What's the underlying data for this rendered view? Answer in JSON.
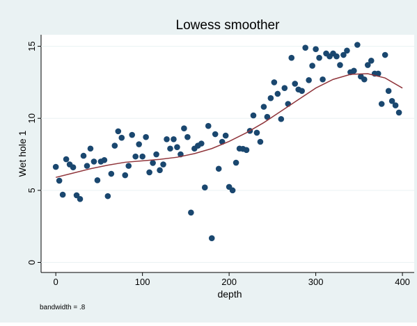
{
  "chart_data": {
    "type": "scatter",
    "title": "Lowess smoother",
    "x_label": "depth",
    "y_label": "Wet hole 1",
    "note": "bandwidth = .8",
    "color": "#1a476f",
    "x": [
      0,
      4,
      8,
      12,
      16,
      20,
      24,
      28,
      32,
      36,
      40,
      44,
      48,
      52,
      56,
      60,
      64,
      68,
      72,
      76,
      80,
      84,
      88,
      92,
      96,
      100,
      104,
      108,
      112,
      116,
      120,
      124,
      128,
      132,
      136,
      140,
      144,
      148,
      152,
      156,
      160,
      164,
      168,
      172,
      176,
      180,
      184,
      188,
      192,
      196,
      200,
      204,
      208,
      212,
      216,
      220,
      224,
      228,
      232,
      236,
      240,
      244,
      248,
      252,
      256,
      260,
      264,
      268,
      272,
      276,
      280,
      284,
      288,
      292,
      296,
      300,
      304,
      308,
      312,
      316,
      320,
      324,
      328,
      332,
      336,
      340,
      344,
      348,
      352,
      356,
      360,
      364,
      368,
      372,
      376,
      380,
      384,
      388,
      392,
      396
    ],
    "values": [
      6.63,
      5.67,
      4.7,
      7.16,
      6.8,
      6.6,
      4.66,
      4.4,
      7.4,
      6.7,
      7.9,
      7.0,
      5.7,
      7.0,
      7.1,
      4.6,
      6.15,
      8.1,
      9.1,
      8.65,
      6.05,
      6.7,
      8.85,
      7.35,
      8.2,
      7.35,
      8.7,
      6.25,
      6.9,
      7.5,
      6.4,
      6.8,
      8.55,
      7.9,
      8.55,
      8.0,
      7.5,
      9.3,
      8.7,
      3.46,
      7.9,
      8.1,
      8.25,
      5.2,
      9.47,
      1.68,
      8.9,
      6.5,
      8.37,
      8.8,
      5.24,
      5.0,
      6.92,
      7.9,
      7.88,
      7.8,
      9.13,
      10.2,
      9.0,
      8.37,
      10.8,
      10.1,
      11.4,
      12.5,
      11.7,
      9.95,
      12.1,
      11.0,
      14.2,
      12.4,
      12.0,
      11.9,
      14.9,
      12.65,
      13.65,
      14.8,
      14.2,
      12.7,
      14.5,
      14.3,
      14.5,
      14.3,
      13.7,
      14.4,
      14.7,
      13.2,
      13.3,
      15.1,
      12.9,
      12.7,
      13.7,
      14.0,
      13.1,
      13.1,
      11.0,
      14.4,
      11.9,
      11.2,
      10.9,
      10.4
    ],
    "smoother": {
      "type": "line",
      "color": "#90353b",
      "x": [
        0,
        20,
        40,
        60,
        80,
        100,
        120,
        140,
        160,
        180,
        200,
        220,
        240,
        260,
        280,
        300,
        320,
        340,
        360,
        380,
        400
      ],
      "values": [
        5.9,
        6.2,
        6.5,
        6.75,
        6.95,
        7.05,
        7.15,
        7.3,
        7.55,
        7.9,
        8.4,
        9.0,
        9.7,
        10.5,
        11.3,
        12.1,
        12.7,
        13.05,
        13.1,
        12.8,
        12.1
      ]
    },
    "xlim": [
      -17,
      413.6
    ],
    "ylim": [
      -0.7,
      15.8
    ],
    "xticks": [
      0,
      100,
      200,
      300,
      400
    ],
    "yticks": [
      0,
      5,
      10,
      15
    ]
  }
}
